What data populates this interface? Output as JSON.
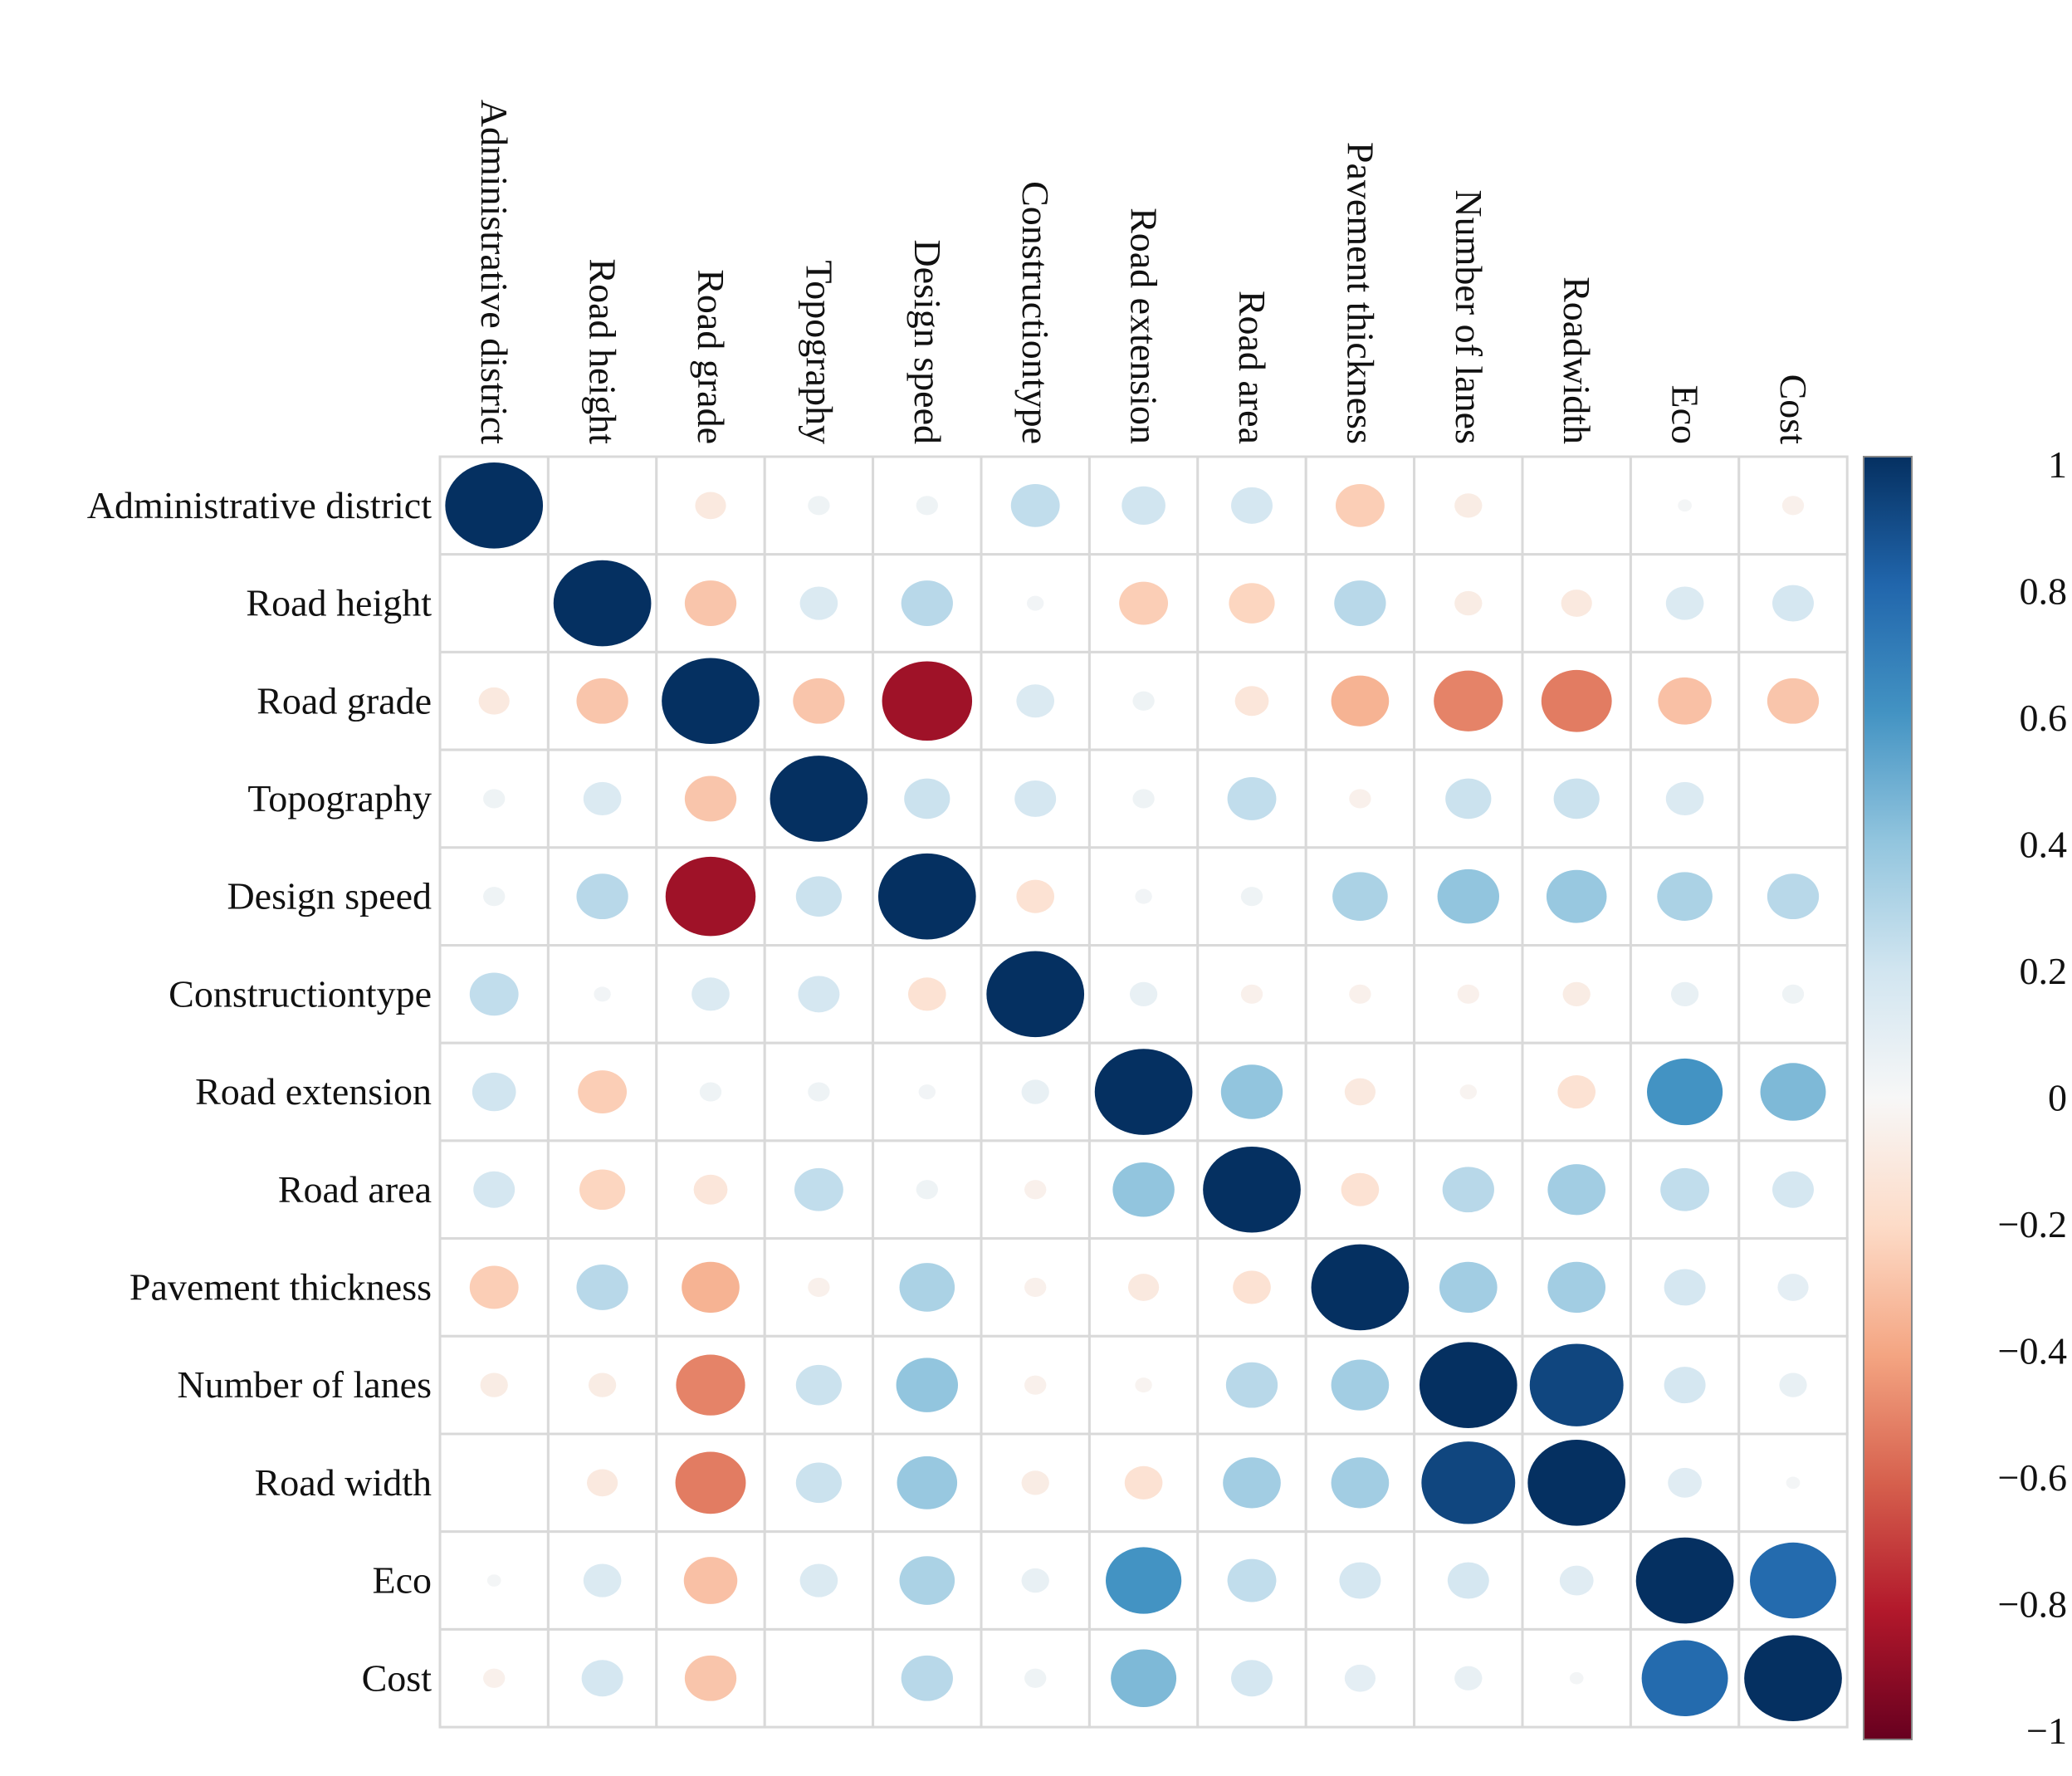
{
  "chart_data": {
    "type": "heatmap",
    "title": "",
    "variables": [
      "Administrative district",
      "Road height",
      "Road grade",
      "Topography",
      "Design speed",
      "Construction type",
      "Road extension",
      "Road area",
      "Pavement thickness",
      "Number of lanes",
      "Road width",
      "Eco",
      "Cost"
    ],
    "row_labels": [
      "Administrative district",
      "Road height",
      "Road grade",
      "Topography",
      "Design speed",
      "Constructiontype",
      "Road extension",
      "Road area",
      "Pavement thickness",
      "Number of lanes",
      "Road width",
      "Eco",
      "Cost"
    ],
    "column_labels": [
      "Administrative district",
      "Road height",
      "Road grade",
      "Topography",
      "Design speed",
      "Constructiontype",
      "Road extension",
      "Road area",
      "Pavement thickness",
      "Number of lanes",
      "Roadwidth",
      "Eco",
      "Cost"
    ],
    "matrix": [
      [
        1.0,
        0.0,
        -0.1,
        0.05,
        0.05,
        0.25,
        0.2,
        0.18,
        -0.25,
        -0.08,
        0.0,
        0.02,
        -0.05
      ],
      [
        0.0,
        1.0,
        -0.28,
        0.15,
        0.28,
        0.03,
        -0.25,
        -0.22,
        0.28,
        -0.08,
        -0.1,
        0.15,
        0.18
      ],
      [
        -0.1,
        -0.28,
        1.0,
        -0.28,
        -0.85,
        0.15,
        0.05,
        -0.12,
        -0.35,
        -0.5,
        -0.52,
        -0.3,
        -0.28
      ],
      [
        0.05,
        0.15,
        -0.28,
        1.0,
        0.22,
        0.18,
        0.05,
        0.25,
        -0.05,
        0.22,
        0.22,
        0.15,
        0.0
      ],
      [
        0.05,
        0.28,
        -0.85,
        0.22,
        1.0,
        -0.15,
        0.03,
        0.05,
        0.32,
        0.4,
        0.38,
        0.32,
        0.28
      ],
      [
        0.25,
        0.03,
        0.15,
        0.18,
        -0.15,
        1.0,
        0.08,
        -0.05,
        -0.05,
        -0.05,
        -0.08,
        0.08,
        0.05
      ],
      [
        0.2,
        -0.25,
        0.05,
        0.05,
        0.03,
        0.08,
        1.0,
        0.4,
        -0.1,
        -0.03,
        -0.15,
        0.6,
        0.45
      ],
      [
        0.18,
        -0.22,
        -0.12,
        0.25,
        0.05,
        -0.05,
        0.4,
        1.0,
        -0.15,
        0.28,
        0.35,
        0.25,
        0.18
      ],
      [
        -0.25,
        0.28,
        -0.35,
        -0.05,
        0.32,
        -0.05,
        -0.1,
        -0.15,
        1.0,
        0.35,
        0.35,
        0.18,
        0.1
      ],
      [
        -0.08,
        -0.08,
        -0.5,
        0.22,
        0.4,
        -0.05,
        -0.03,
        0.28,
        0.35,
        1.0,
        0.92,
        0.18,
        0.08
      ],
      [
        0.0,
        -0.1,
        -0.52,
        0.22,
        0.38,
        -0.08,
        -0.15,
        0.35,
        0.35,
        0.92,
        1.0,
        0.12,
        0.02
      ],
      [
        0.02,
        0.15,
        -0.3,
        0.15,
        0.32,
        0.08,
        0.6,
        0.25,
        0.18,
        0.18,
        0.12,
        1.0,
        0.78
      ],
      [
        -0.05,
        0.18,
        -0.28,
        0.0,
        0.28,
        0.05,
        0.45,
        0.18,
        0.1,
        0.08,
        0.02,
        0.78,
        1.0
      ]
    ],
    "colorbar": {
      "range": [
        -1,
        1
      ],
      "ticks": [
        1,
        0.8,
        0.6,
        0.4,
        0.2,
        0,
        -0.2,
        -0.4,
        -0.6,
        -0.8,
        -1
      ],
      "tick_labels": [
        "1",
        "0.8",
        "0.6",
        "0.4",
        "0.2",
        "0",
        "−0.2",
        "−0.4",
        "−0.6",
        "−0.8",
        "−1"
      ],
      "colors": [
        "#053061",
        "#2166ac",
        "#4393c3",
        "#92c5de",
        "#d1e5f0",
        "#f7f7f7",
        "#fddbc7",
        "#f4a582",
        "#d6604d",
        "#b2182b",
        "#67001f"
      ],
      "placement": "right"
    },
    "grid": true,
    "legend": "colorbar-right"
  }
}
